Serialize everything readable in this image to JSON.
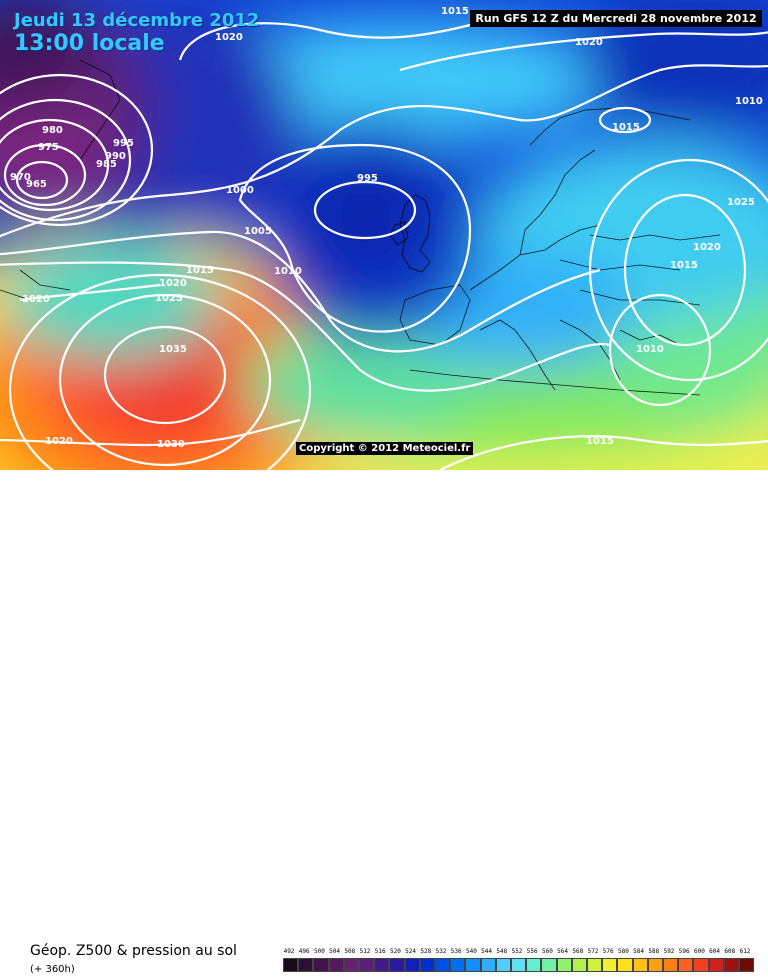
{
  "header": {
    "date": "Jeudi 13 décembre 2012",
    "time": "13:00 locale",
    "run": "Run GFS 12 Z du Mercredi 28 novembre 2012"
  },
  "copyright": "Copyright © 2012 Meteociel.fr",
  "footer": {
    "parameter": "Géop. Z500 & pression au sol",
    "forecast_hour": "(+ 360h)"
  },
  "isobar_labels": [
    "1015",
    "1020",
    "1020",
    "1010",
    "1015",
    "980",
    "975",
    "995",
    "990",
    "985",
    "970",
    "965",
    "1000",
    "995",
    "1005",
    "1010",
    "1015",
    "1025",
    "1020",
    "1020",
    "1025",
    "1035",
    "1015",
    "1010",
    "1020",
    "1030",
    "1015"
  ],
  "scale": {
    "values": [
      "492",
      "496",
      "500",
      "504",
      "508",
      "512",
      "516",
      "520",
      "524",
      "528",
      "532",
      "536",
      "540",
      "544",
      "548",
      "552",
      "556",
      "560",
      "564",
      "568",
      "572",
      "576",
      "580",
      "584",
      "588",
      "592",
      "596",
      "600",
      "604",
      "608",
      "612"
    ],
    "colors": [
      "#1a0a1e",
      "#2d0f35",
      "#401448",
      "#551a5c",
      "#6a2070",
      "#5a2078",
      "#401a8a",
      "#2a1aa0",
      "#1020b8",
      "#0030d0",
      "#0050e8",
      "#0070f0",
      "#1090f8",
      "#30b0fc",
      "#50ccff",
      "#60e0f0",
      "#60f0d0",
      "#70f0a0",
      "#90f070",
      "#b0f050",
      "#d0f040",
      "#f0f030",
      "#ffe020",
      "#ffc018",
      "#ffa010",
      "#ff8010",
      "#ff6020",
      "#f04020",
      "#d02020",
      "#a01010",
      "#700808"
    ]
  }
}
